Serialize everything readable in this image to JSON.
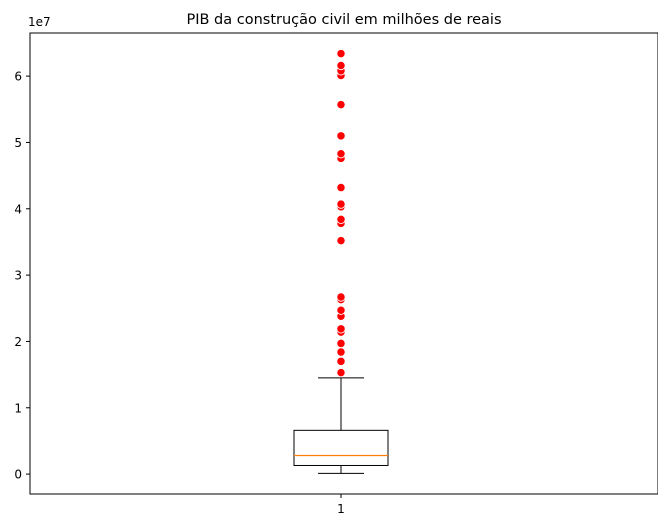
{
  "chart_data": {
    "type": "boxplot",
    "title": "PIB da construção civil em milhões de reais",
    "scale_label": "1e7",
    "xlabel": "",
    "ylabel": "",
    "grid": false,
    "x_ticks": [
      "1"
    ],
    "y_ticks": [
      {
        "value": 0,
        "label": "0"
      },
      {
        "value": 10000000,
        "label": "1"
      },
      {
        "value": 20000000,
        "label": "2"
      },
      {
        "value": 30000000,
        "label": "3"
      },
      {
        "value": 40000000,
        "label": "4"
      },
      {
        "value": 50000000,
        "label": "5"
      },
      {
        "value": 60000000,
        "label": "6"
      }
    ],
    "ylim": [
      -3000000,
      66500000
    ],
    "box": {
      "category": "1",
      "whisker_low": 100000,
      "q1": 1300000,
      "median": 2800000,
      "q3": 6600000,
      "whisker_high": 14500000
    },
    "outliers": [
      15300000,
      17000000,
      18400000,
      19700000,
      21400000,
      21900000,
      23800000,
      24700000,
      26300000,
      26700000,
      35200000,
      37800000,
      38400000,
      40300000,
      40700000,
      43200000,
      47600000,
      48300000,
      51000000,
      55700000,
      60100000,
      60800000,
      61600000,
      63400000
    ],
    "colors": {
      "box": "#000000",
      "median": "#ff7f0e",
      "outlier_fill": "#ff0000",
      "outlier_edge": "#ffffff"
    }
  }
}
